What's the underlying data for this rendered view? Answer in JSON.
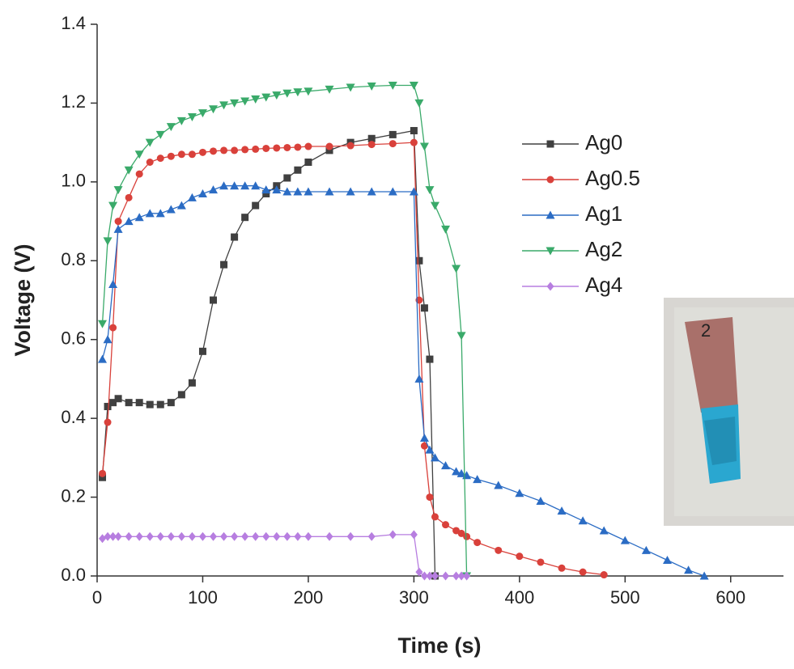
{
  "chart_data": {
    "type": "line",
    "xlabel": "Time (s)",
    "ylabel": "Voltage (V)",
    "xlim": [
      0,
      650
    ],
    "ylim": [
      0,
      1.4
    ],
    "xticks": [
      0,
      100,
      200,
      300,
      400,
      500,
      600
    ],
    "yticks": [
      {
        "value": 0,
        "label": "0.0"
      },
      {
        "value": 0.2,
        "label": "0.2"
      },
      {
        "value": 0.4,
        "label": "0.4"
      },
      {
        "value": 0.6,
        "label": "0.6"
      },
      {
        "value": 0.8,
        "label": "0.8"
      },
      {
        "value": 1.0,
        "label": "1.0"
      },
      {
        "value": 1.2,
        "label": "1.2"
      },
      {
        "value": 1.4,
        "label": "1.4"
      }
    ],
    "legend": "right",
    "x": [
      5,
      10,
      15,
      20,
      30,
      40,
      50,
      60,
      70,
      80,
      90,
      100,
      110,
      120,
      130,
      140,
      150,
      160,
      170,
      180,
      190,
      200,
      220,
      240,
      260,
      280,
      300,
      305,
      310,
      315,
      320,
      330,
      340,
      345,
      350,
      360,
      380,
      400,
      420,
      440,
      460,
      480,
      500,
      520,
      540,
      560,
      575
    ],
    "series": [
      {
        "name": "Ag0",
        "color": "#404040",
        "marker": "square",
        "values": [
          0.25,
          0.43,
          0.44,
          0.45,
          0.44,
          0.44,
          0.435,
          0.435,
          0.44,
          0.46,
          0.49,
          0.57,
          0.7,
          0.79,
          0.86,
          0.91,
          0.94,
          0.97,
          0.99,
          1.01,
          1.03,
          1.05,
          1.08,
          1.1,
          1.11,
          1.12,
          1.13,
          0.8,
          0.68,
          0.55,
          0.0,
          null,
          null,
          null,
          null,
          null,
          null,
          null,
          null,
          null,
          null,
          null,
          null,
          null,
          null,
          null,
          null
        ]
      },
      {
        "name": "Ag0.5",
        "color": "#d9413b",
        "marker": "circle",
        "values": [
          0.26,
          0.39,
          0.63,
          0.9,
          0.96,
          1.02,
          1.05,
          1.06,
          1.065,
          1.07,
          1.07,
          1.075,
          1.078,
          1.08,
          1.08,
          1.082,
          1.083,
          1.085,
          1.086,
          1.087,
          1.088,
          1.09,
          1.09,
          1.092,
          1.095,
          1.097,
          1.1,
          0.7,
          0.33,
          0.2,
          0.15,
          0.13,
          0.115,
          0.108,
          0.1,
          0.085,
          0.065,
          0.05,
          0.035,
          0.02,
          0.01,
          0.003,
          null,
          null,
          null,
          null,
          null
        ]
      },
      {
        "name": "Ag1",
        "color": "#2b6cc4",
        "marker": "triangle-up",
        "values": [
          0.55,
          0.6,
          0.74,
          0.88,
          0.9,
          0.91,
          0.92,
          0.92,
          0.93,
          0.94,
          0.96,
          0.97,
          0.98,
          0.99,
          0.99,
          0.99,
          0.99,
          0.98,
          0.98,
          0.975,
          0.975,
          0.975,
          0.975,
          0.975,
          0.975,
          0.975,
          0.975,
          0.5,
          0.35,
          0.32,
          0.3,
          0.28,
          0.265,
          0.26,
          0.255,
          0.245,
          0.23,
          0.21,
          0.19,
          0.165,
          0.14,
          0.115,
          0.09,
          0.065,
          0.04,
          0.015,
          0.0
        ]
      },
      {
        "name": "Ag2",
        "color": "#3aaa6a",
        "marker": "triangle-down",
        "values": [
          0.64,
          0.85,
          0.94,
          0.98,
          1.03,
          1.07,
          1.1,
          1.12,
          1.14,
          1.155,
          1.165,
          1.175,
          1.185,
          1.195,
          1.2,
          1.205,
          1.21,
          1.215,
          1.22,
          1.225,
          1.228,
          1.23,
          1.235,
          1.24,
          1.243,
          1.245,
          1.245,
          1.2,
          1.09,
          0.98,
          0.94,
          0.88,
          0.78,
          0.61,
          0.0,
          null,
          null,
          null,
          null,
          null,
          null,
          null,
          null,
          null,
          null,
          null,
          null
        ]
      },
      {
        "name": "Ag4",
        "color": "#b77ee0",
        "marker": "diamond",
        "values": [
          0.095,
          0.1,
          0.1,
          0.1,
          0.1,
          0.1,
          0.1,
          0.1,
          0.1,
          0.1,
          0.1,
          0.1,
          0.1,
          0.1,
          0.1,
          0.1,
          0.1,
          0.1,
          0.1,
          0.1,
          0.1,
          0.1,
          0.1,
          0.1,
          0.1,
          0.105,
          0.105,
          0.01,
          0.0,
          0.0,
          0.0,
          0.0,
          0.0,
          0.0,
          0.0,
          null,
          null,
          null,
          null,
          null,
          null,
          null,
          null,
          null,
          null,
          null,
          null
        ]
      }
    ]
  }
}
